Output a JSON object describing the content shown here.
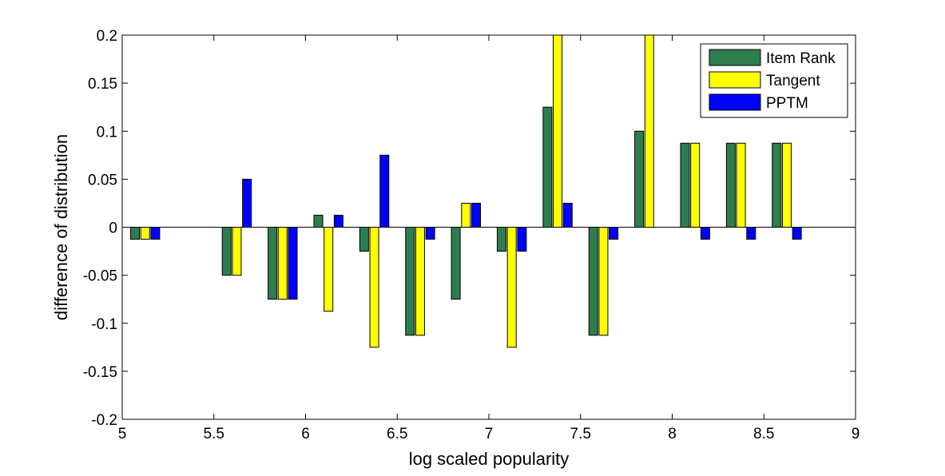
{
  "chart_data": {
    "type": "bar",
    "title": "",
    "xlabel": "log scaled popularity",
    "ylabel": "difference of distribution",
    "xlim": [
      5,
      9
    ],
    "ylim": [
      -0.2,
      0.2
    ],
    "xticks": [
      "5",
      "5.5",
      "6",
      "6.5",
      "7",
      "7.5",
      "8",
      "8.5",
      "9"
    ],
    "yticks": [
      "0.2",
      "0.15",
      "0.1",
      "0.05",
      "0",
      "-0.05",
      "-0.1",
      "-0.15",
      "-0.2"
    ],
    "grid": false,
    "legend_position": "top-right",
    "x": [
      5.125,
      5.625,
      5.875,
      6.125,
      6.375,
      6.625,
      6.875,
      7.125,
      7.375,
      7.625,
      7.875,
      8.125,
      8.375,
      8.625
    ],
    "series": [
      {
        "name": "Item Rank",
        "color": "#2e7d4f",
        "values": [
          -0.0125,
          -0.05,
          -0.075,
          0.0125,
          -0.025,
          -0.1125,
          -0.075,
          -0.025,
          0.125,
          -0.1125,
          0.1,
          0.0875,
          0.0875,
          0.0875
        ]
      },
      {
        "name": "Tangent",
        "color": "#ffff00",
        "values": [
          -0.0125,
          -0.05,
          -0.075,
          -0.0875,
          -0.125,
          -0.1125,
          0.025,
          -0.125,
          0.2,
          -0.1125,
          0.2,
          0.0875,
          0.0875,
          0.0875
        ]
      },
      {
        "name": "PPTM",
        "color": "#0000ff",
        "values": [
          -0.0125,
          0.05,
          -0.075,
          0.0125,
          0.075,
          -0.0125,
          0.025,
          -0.025,
          0.025,
          -0.0125,
          0,
          -0.0125,
          -0.0125,
          -0.0125
        ]
      }
    ]
  }
}
